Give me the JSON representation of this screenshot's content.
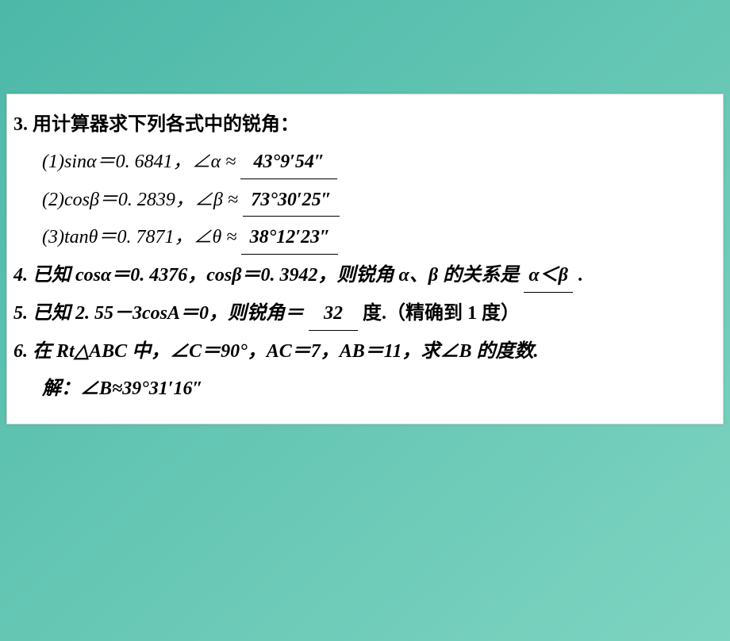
{
  "q3": {
    "title": "3. 用计算器求下列各式中的锐角：",
    "item1_pre": "(1)sinα＝0. 6841，∠α ≈",
    "item1_ans": "43°9′54″",
    "item2_pre": "(2)cosβ＝0. 2839，∠β ≈",
    "item2_ans": "73°30′25″",
    "item3_pre": "(3)tanθ＝0. 7871，∠θ ≈",
    "item3_ans": "38°12′23″"
  },
  "q4": {
    "pre": "4. 已知 cosα＝0. 4376，cosβ＝0. 3942，则锐角 α、β 的关系是",
    "ans": "α＜β",
    "post": "."
  },
  "q5": {
    "pre": "5. 已知 2. 55－3cosA＝0，则锐角＝",
    "ans": "32",
    "post": "度.（精确到 1 度）"
  },
  "q6": {
    "title": "6. 在 Rt△ABC 中，∠C＝90°，AC＝7，AB＝11，求∠B 的度数.",
    "sol_label": "解：",
    "sol": "∠B≈39°31′16″"
  }
}
